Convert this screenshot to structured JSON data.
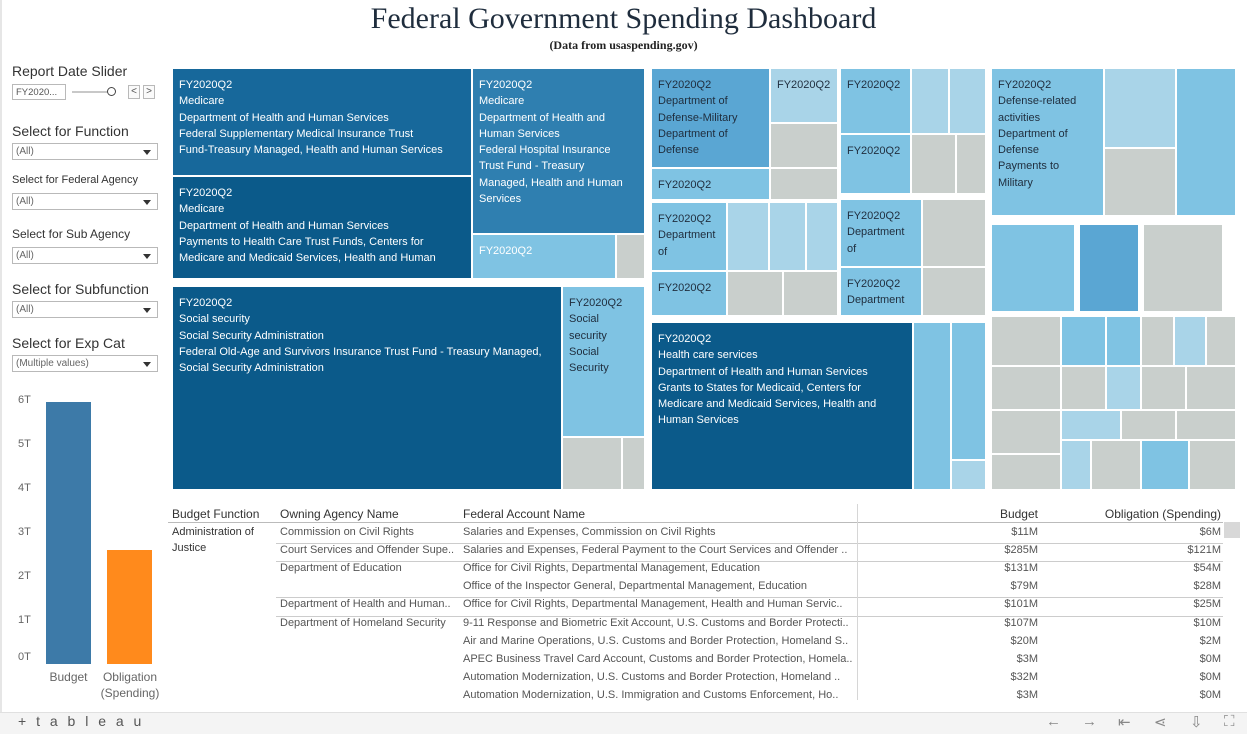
{
  "header": {
    "title": "Federal Government Spending Dashboard",
    "subtitle": "(Data from usaspending.gov)"
  },
  "filters": {
    "report_date_label": "Report Date Slider",
    "report_date_value": "FY2020...",
    "prev_symbol": "<",
    "next_symbol": ">",
    "function_label": "Select for Function",
    "function_value": "(All)",
    "agency_label": "Select for Federal Agency",
    "agency_value": "(All)",
    "subagency_label": "Select for Sub Agency",
    "subagency_value": "(All)",
    "subfunction_label": "Select for Subfunction",
    "subfunction_value": "(All)",
    "expcat_label": "Select for Exp Cat",
    "expcat_value": "(Multiple values)"
  },
  "chart_data": {
    "type": "bar",
    "categories": [
      "Budget",
      "Obligation (Spending)"
    ],
    "values": [
      6.0,
      2.6
    ],
    "colors": [
      "#3d7aa8",
      "#ff8a1c"
    ],
    "y_ticks": [
      "6T",
      "5T",
      "4T",
      "3T",
      "2T",
      "1T",
      "0T"
    ],
    "ylim": [
      0,
      6
    ],
    "cat_labels": [
      "Budget",
      "Obligation",
      "(Spending)"
    ]
  },
  "treemap": {
    "colors": {
      "darkest": "#0b5a8a",
      "dark": "#17689b",
      "mid": "#2f7fb0",
      "medium": "#5aa6d3",
      "light": "#7fc3e3",
      "pale": "#a9d4e8",
      "gray": "#c9cfcc"
    },
    "blocks": [
      {
        "lines": [
          "FY2020Q2",
          "Medicare",
          "Department of Health and Human Services",
          "Federal Supplementary Medical Insurance Trust",
          "Fund-Treasury Managed, Health and Human Services"
        ]
      },
      {
        "lines": [
          "FY2020Q2",
          "Medicare",
          "Department of Health and Human Services",
          "Payments to Health Care Trust Funds, Centers for",
          "Medicare and Medicaid Services, Health and Human"
        ]
      },
      {
        "lines": [
          "FY2020Q2",
          "Medicare",
          "Department of Health and",
          "Human Services",
          "Federal Hospital Insurance",
          "Trust Fund - Treasury",
          "Managed, Health and Human",
          "Services"
        ]
      },
      {
        "lines": [
          "FY2020Q2"
        ]
      },
      {
        "lines": [
          "FY2020Q2",
          "Social security",
          "Social Security Administration",
          "Federal Old-Age and Survivors Insurance Trust Fund - Treasury Managed,",
          "Social Security Administration"
        ]
      },
      {
        "lines": [
          "FY2020Q2",
          "Social",
          "security",
          "Social",
          "Security"
        ]
      },
      {
        "lines": [
          "FY2020Q2",
          "Department of",
          "Defense-Military",
          "Department of",
          "Defense"
        ]
      },
      {
        "lines": [
          "FY2020Q2"
        ]
      },
      {
        "lines": [
          "FY2020Q2"
        ]
      },
      {
        "lines": [
          "FY2020Q2",
          "Department",
          "of"
        ]
      },
      {
        "lines": [
          "FY2020Q2"
        ]
      },
      {
        "lines": [
          "FY2020Q2"
        ]
      },
      {
        "lines": [
          "FY2020Q2"
        ]
      },
      {
        "lines": [
          "FY2020Q2",
          "Department",
          "of"
        ]
      },
      {
        "lines": [
          "FY2020Q2",
          "Department"
        ]
      },
      {
        "lines": [
          "FY2020Q2",
          "Defense-related",
          "activities",
          "Department of",
          "Defense",
          "Payments to",
          "Military"
        ]
      },
      {
        "lines": [
          "FY2020Q2",
          "Health care services",
          "Department of Health and Human Services",
          "Grants to States for Medicaid, Centers for",
          "Medicare and Medicaid Services, Health and",
          "Human Services"
        ]
      }
    ]
  },
  "table": {
    "headers": [
      "Budget Function",
      "Owning Agency Name",
      "Federal Account Name",
      "Budget",
      "Obligation (Spending)"
    ],
    "function_lines": [
      "Administration of",
      "Justice"
    ],
    "rows": [
      {
        "agency": "Commission on Civil Rights",
        "account": "Salaries and Expenses, Commission on Civil Rights",
        "budget": "$11M",
        "obligation": "$6M"
      },
      {
        "agency": "Court Services and Offender Supe..",
        "account": "Salaries and Expenses, Federal Payment to the Court Services and Offender ..",
        "budget": "$285M",
        "obligation": "$121M"
      },
      {
        "agency": "Department of Education",
        "account": "Office for Civil Rights, Departmental Management, Education",
        "budget": "$131M",
        "obligation": "$54M"
      },
      {
        "agency": "",
        "account": "Office of the Inspector General, Departmental Management, Education",
        "budget": "$79M",
        "obligation": "$28M"
      },
      {
        "agency": "Department of Health and Human..",
        "account": "Office for Civil Rights, Departmental Management, Health and Human Servic..",
        "budget": "$101M",
        "obligation": "$25M"
      },
      {
        "agency": "Department of Homeland Security",
        "account": "9-11 Response and Biometric Exit Account, U.S. Customs and Border Protecti..",
        "budget": "$107M",
        "obligation": "$10M"
      },
      {
        "agency": "",
        "account": "Air and Marine Operations, U.S. Customs and Border Protection, Homeland S..",
        "budget": "$20M",
        "obligation": "$2M"
      },
      {
        "agency": "",
        "account": "APEC Business Travel Card Account, Customs and Border Protection, Homela..",
        "budget": "$3M",
        "obligation": "$0M"
      },
      {
        "agency": "",
        "account": "Automation Modernization, U.S. Customs and Border Protection, Homeland ..",
        "budget": "$32M",
        "obligation": "$0M"
      },
      {
        "agency": "",
        "account": "Automation Modernization, U.S. Immigration and Customs Enforcement, Ho..",
        "budget": "$3M",
        "obligation": "$0M"
      }
    ]
  },
  "footer": {
    "brand": "+ t a b l e a u",
    "icons": [
      "undo-icon",
      "redo-icon",
      "revert-icon",
      "share-icon",
      "download-icon",
      "fullscreen-icon"
    ]
  }
}
